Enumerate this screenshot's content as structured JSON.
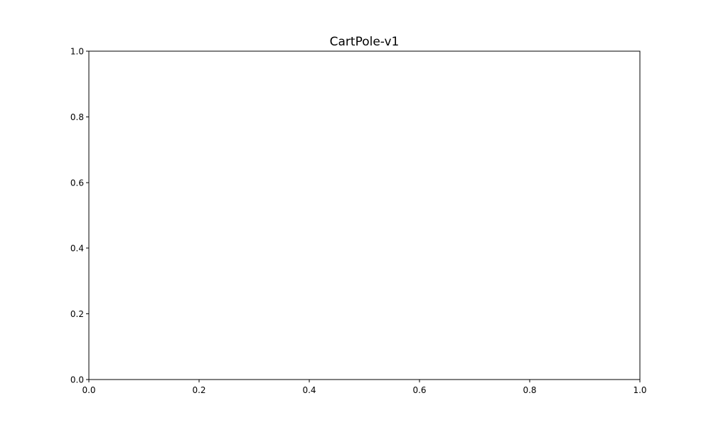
{
  "chart_data": {
    "type": "line",
    "title": "CartPole-v1",
    "xlabel": "",
    "ylabel": "",
    "xlim": [
      0.0,
      1.0
    ],
    "ylim": [
      0.0,
      1.0
    ],
    "x_ticks": [
      0.0,
      0.2,
      0.4,
      0.6,
      0.8,
      1.0
    ],
    "x_tick_labels": [
      "0.0",
      "0.2",
      "0.4",
      "0.6",
      "0.8",
      "1.0"
    ],
    "y_ticks": [
      0.0,
      0.2,
      0.4,
      0.6,
      0.8,
      1.0
    ],
    "y_tick_labels": [
      "0.0",
      "0.2",
      "0.4",
      "0.6",
      "0.8",
      "1.0"
    ],
    "grid": false,
    "series": []
  },
  "colors": {
    "background": "#ffffff",
    "axes": "#000000"
  }
}
